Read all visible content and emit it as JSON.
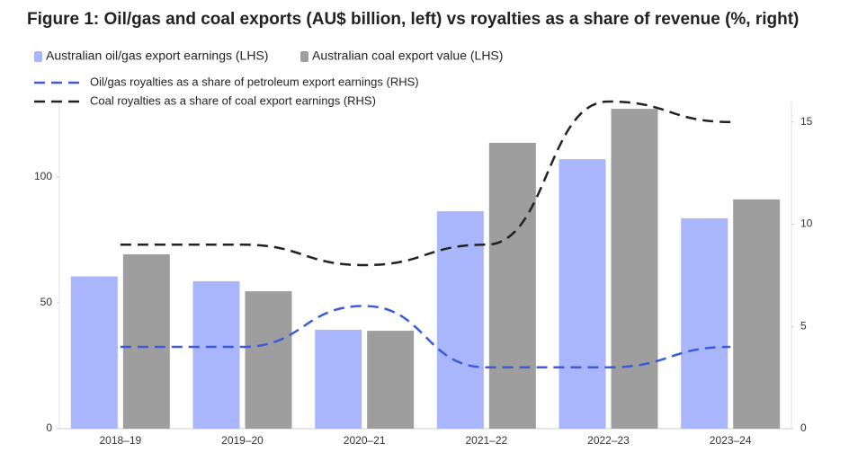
{
  "chart_data": {
    "type": "bar-line",
    "title": "Figure 1: Oil/gas and coal exports (AU$ billion, left) vs royalties as a share of revenue (%, right)",
    "categories": [
      "2018–19",
      "2019–20",
      "2020–21",
      "2021–22",
      "2022–23",
      "2023–24"
    ],
    "series": [
      {
        "name": "Australian oil/gas export earnings (LHS)",
        "type": "bar",
        "color": "#a9b6fb",
        "values": [
          60.5,
          58.6,
          39.3,
          86.4,
          107.1,
          83.6
        ]
      },
      {
        "name": "Australian coal export value (LHS)",
        "type": "bar",
        "color": "#9e9e9e",
        "values": [
          69.3,
          54.6,
          38.9,
          113.6,
          127.1,
          91.1
        ]
      },
      {
        "name": "Oil/gas royalties as a share of petroleum export earnings (RHS)",
        "type": "line",
        "axis": "y2",
        "color": "#3b5bdb",
        "values": [
          4,
          4,
          6,
          3,
          3,
          4
        ]
      },
      {
        "name": "Coal royalties as a share of coal export earnings (RHS)",
        "type": "line",
        "axis": "y2",
        "color": "#222222",
        "values": [
          9,
          9,
          8,
          9,
          16,
          15
        ]
      }
    ],
    "ylim": [
      0,
      130
    ],
    "yticks": [
      0,
      50,
      100
    ],
    "y2lim": [
      0,
      16
    ],
    "y2ticks": [
      0,
      5,
      10,
      15
    ]
  }
}
